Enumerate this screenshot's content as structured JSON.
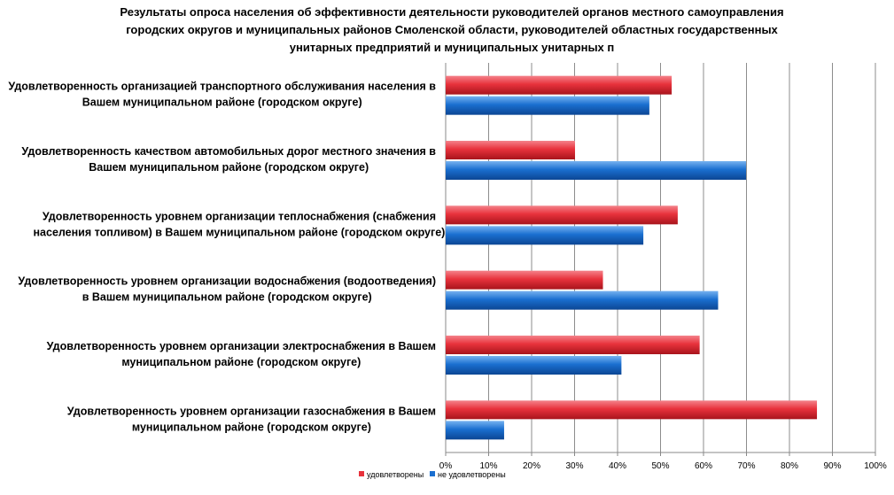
{
  "chart_data": {
    "type": "bar",
    "orientation": "horizontal",
    "title_lines": [
      "Результаты опроса населения об эффективности деятельности руководителей органов местного самоуправления",
      "городских округов и муниципальных районов Смоленской области, руководителей областных государственных",
      "унитарных предприятий и муниципальных унитарных п"
    ],
    "categories": [
      [
        "Удовлетворенность организацией транспортного обслуживания населения в",
        "Вашем муниципальном районе (городском округе)"
      ],
      [
        "Удовлетворенность качеством автомобильных дорог местного значения в",
        "Вашем муниципальном районе (городском округе)"
      ],
      [
        "Удовлетворенность уровнем организации теплоснабжения (снабжения",
        "населения топливом) в Вашем муниципальном районе (городском округе)"
      ],
      [
        "Удовлетворенность уровнем организации водоснабжения (водоотведения)",
        "в Вашем муниципальном районе (городском округе)"
      ],
      [
        "Удовлетворенность уровнем организации электроснабжения в Вашем",
        "муниципальном районе (городском округе)"
      ],
      [
        "Удовлетворенность уровнем организации газоснабжения в Вашем",
        "муниципальном районе (городском округе)"
      ]
    ],
    "series": [
      {
        "name": "удовлетворены",
        "color": "#e8323c",
        "values": [
          52.6,
          30.1,
          54.0,
          36.6,
          59.1,
          86.4
        ]
      },
      {
        "name": "не удовлетворены",
        "color": "#1a6fd0",
        "values": [
          47.4,
          69.9,
          46.0,
          63.4,
          40.9,
          13.6
        ]
      }
    ],
    "xlim": [
      0,
      100
    ],
    "xticks": [
      "0%",
      "10%",
      "20%",
      "30%",
      "40%",
      "50%",
      "60%",
      "70%",
      "80%",
      "90%",
      "100%"
    ],
    "grid": true,
    "legend_position": "bottom-left"
  }
}
